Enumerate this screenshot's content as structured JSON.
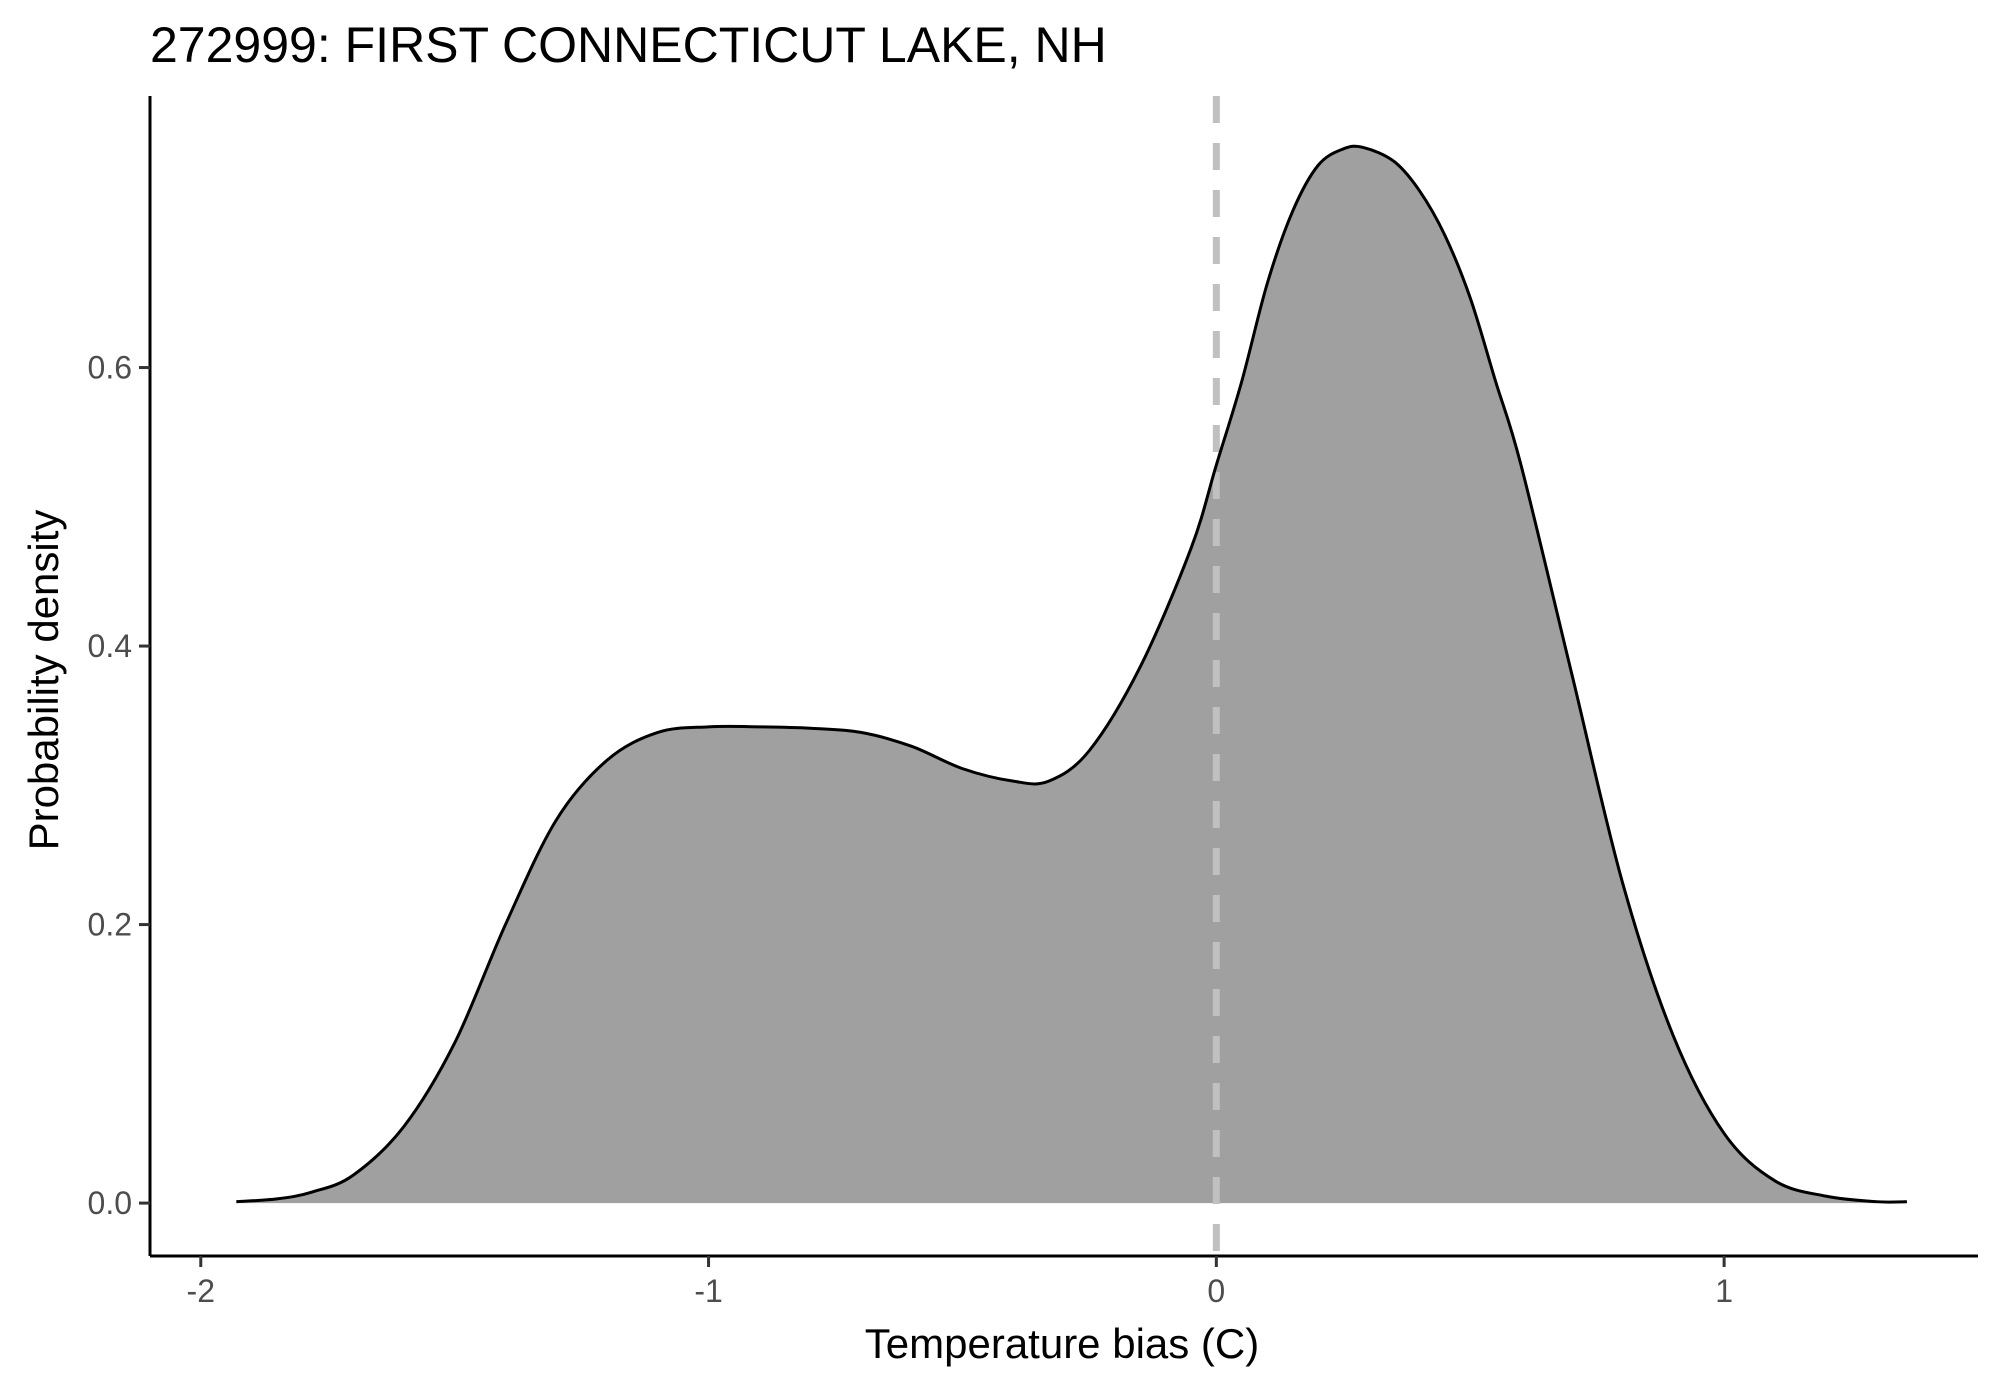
{
  "chart_data": {
    "type": "area",
    "title": "272999: FIRST CONNECTICUT LAKE, NH",
    "xlabel": "Temperature bias (C)",
    "ylabel": "Probability density",
    "xlim": [
      -2.1,
      1.5
    ],
    "ylim": [
      -0.038,
      0.795
    ],
    "x_ticks": [
      -2,
      -1,
      0,
      1
    ],
    "x_tick_labels": [
      "-2",
      "-1",
      "0",
      "1"
    ],
    "y_ticks": [
      0.0,
      0.2,
      0.4,
      0.6
    ],
    "y_tick_labels": [
      "0.0",
      "0.2",
      "0.4",
      "0.6"
    ],
    "grid": false,
    "legend": "none",
    "reference_line": {
      "x": 0,
      "style": "dashed",
      "color": "#c0c0c0"
    },
    "fill_color": "#a0a0a0",
    "line_color": "#000000",
    "series": [
      {
        "x": [
          -1.93,
          -1.85,
          -1.78,
          -1.7,
          -1.6,
          -1.5,
          -1.4,
          -1.3,
          -1.2,
          -1.1,
          -1.0,
          -0.9,
          -0.8,
          -0.7,
          -0.6,
          -0.5,
          -0.4,
          -0.33,
          -0.25,
          -0.15,
          -0.05,
          0.0,
          0.05,
          0.1,
          0.15,
          0.2,
          0.25,
          0.29,
          0.35,
          0.4,
          0.45,
          0.5,
          0.55,
          0.6,
          0.7,
          0.8,
          0.9,
          1.0,
          1.1,
          1.2,
          1.3,
          1.36
        ],
        "y": [
          0.001,
          0.003,
          0.008,
          0.02,
          0.055,
          0.115,
          0.2,
          0.275,
          0.318,
          0.338,
          0.342,
          0.342,
          0.341,
          0.338,
          0.328,
          0.312,
          0.303,
          0.303,
          0.325,
          0.385,
          0.47,
          0.53,
          0.59,
          0.66,
          0.712,
          0.745,
          0.757,
          0.758,
          0.748,
          0.727,
          0.695,
          0.65,
          0.59,
          0.53,
          0.38,
          0.23,
          0.12,
          0.05,
          0.016,
          0.005,
          0.001,
          0.001
        ]
      }
    ]
  }
}
